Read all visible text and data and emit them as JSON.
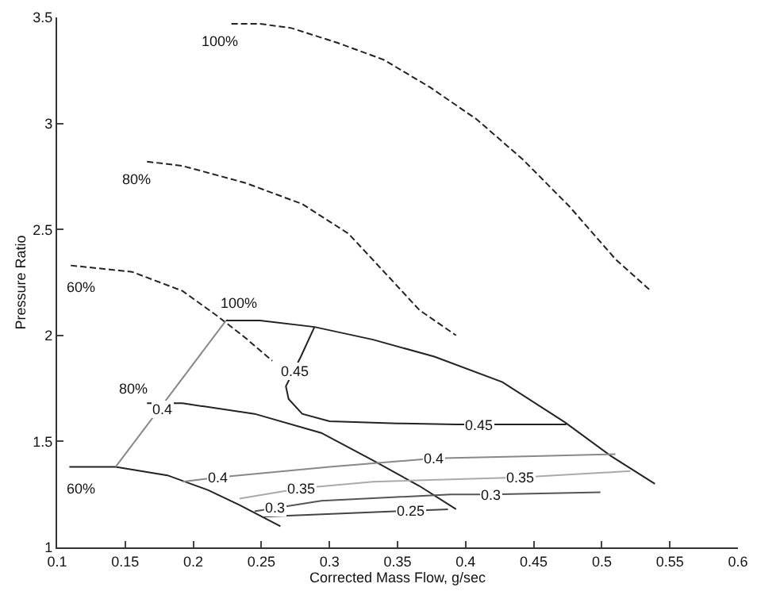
{
  "chart_data": {
    "type": "line",
    "xlabel": "Corrected Mass Flow, g/sec",
    "ylabel": "Pressure Ratio",
    "xlim": [
      0.1,
      0.6
    ],
    "xticks": [
      0.1,
      0.15,
      0.2,
      0.25,
      0.3,
      0.35,
      0.4,
      0.45,
      0.5,
      0.55,
      0.6
    ],
    "ylim": [
      1,
      3.5
    ],
    "yticks": [
      1,
      1.5,
      2,
      2.5,
      3,
      3.5
    ],
    "marker": "none",
    "series": [
      {
        "color": "#222222",
        "line_style": "dashed",
        "x": [
          0.228,
          0.249,
          0.272,
          0.306,
          0.34,
          0.374,
          0.408,
          0.442,
          0.476,
          0.51,
          0.536
        ],
        "values": [
          3.47,
          3.47,
          3.45,
          3.38,
          3.3,
          3.17,
          3.02,
          2.83,
          2.61,
          2.36,
          2.21
        ]
      },
      {
        "color": "#222222",
        "line_style": "dashed",
        "x": [
          0.166,
          0.192,
          0.238,
          0.28,
          0.314,
          0.343,
          0.366,
          0.393
        ],
        "values": [
          2.82,
          2.8,
          2.72,
          2.62,
          2.48,
          2.28,
          2.12,
          2.0
        ]
      },
      {
        "color": "#222222",
        "line_style": "dashed",
        "x": [
          0.11,
          0.155,
          0.192,
          0.218,
          0.238,
          0.258
        ],
        "values": [
          2.33,
          2.3,
          2.21,
          2.09,
          1.99,
          1.88
        ]
      },
      {
        "color": "#222222",
        "line_style": "solid",
        "x": [
          0.224,
          0.249,
          0.289,
          0.332,
          0.377,
          0.427,
          0.473,
          0.507,
          0.539
        ],
        "values": [
          2.07,
          2.07,
          2.04,
          1.98,
          1.9,
          1.78,
          1.59,
          1.43,
          1.3
        ]
      },
      {
        "color": "#222222",
        "line_style": "solid",
        "x": [
          0.166,
          0.192,
          0.245,
          0.294,
          0.332,
          0.366,
          0.393
        ],
        "values": [
          1.68,
          1.68,
          1.63,
          1.54,
          1.41,
          1.29,
          1.18
        ]
      },
      {
        "color": "#222222",
        "line_style": "solid",
        "x": [
          0.109,
          0.143,
          0.181,
          0.211,
          0.234,
          0.264
        ],
        "values": [
          1.38,
          1.38,
          1.34,
          1.27,
          1.2,
          1.1
        ]
      },
      {
        "color": "#222222",
        "line_style": "solid",
        "x": [
          0.289,
          0.279,
          0.268,
          0.27,
          0.28,
          0.3,
          0.35,
          0.393,
          0.474
        ],
        "values": [
          2.04,
          1.9,
          1.76,
          1.7,
          1.63,
          1.595,
          1.585,
          1.58,
          1.58
        ]
      },
      {
        "color": "#888888",
        "line_style": "solid",
        "x": [
          0.143,
          0.224
        ],
        "values": [
          1.38,
          2.07
        ]
      },
      {
        "color": "#888888",
        "line_style": "solid",
        "x": [
          0.192,
          0.218,
          0.3,
          0.377,
          0.45,
          0.51
        ],
        "values": [
          1.31,
          1.33,
          1.38,
          1.42,
          1.43,
          1.44
        ]
      },
      {
        "color": "#aaaaaa",
        "line_style": "solid",
        "x": [
          0.234,
          0.28,
          0.332,
          0.44,
          0.521
        ],
        "values": [
          1.23,
          1.28,
          1.31,
          1.33,
          1.36
        ]
      },
      {
        "color": "#555555",
        "line_style": "solid",
        "x": [
          0.245,
          0.294,
          0.389,
          0.419,
          0.499
        ],
        "values": [
          1.17,
          1.22,
          1.25,
          1.25,
          1.26
        ]
      },
      {
        "color": "#444444",
        "line_style": "solid",
        "x": [
          0.252,
          0.348,
          0.387
        ],
        "values": [
          1.145,
          1.17,
          1.18
        ]
      }
    ],
    "annotations": [
      {
        "text": "100%",
        "x": 0.22,
        "y": 3.39
      },
      {
        "text": "80%",
        "x": 0.158,
        "y": 2.74
      },
      {
        "text": "60%",
        "x": 0.118,
        "y": 2.23
      },
      {
        "text": "100%",
        "x": 0.234,
        "y": 2.15
      },
      {
        "text": "80%",
        "x": 0.156,
        "y": 1.75
      },
      {
        "text": "60%",
        "x": 0.118,
        "y": 1.28
      },
      {
        "text": "0.45",
        "x": 0.275,
        "y": 1.83
      },
      {
        "text": "0.45",
        "x": 0.41,
        "y": 1.58
      },
      {
        "text": "0.4",
        "x": 0.177,
        "y": 1.65
      },
      {
        "text": "0.4",
        "x": 0.218,
        "y": 1.33
      },
      {
        "text": "0.4",
        "x": 0.377,
        "y": 1.42
      },
      {
        "text": "0.35",
        "x": 0.28,
        "y": 1.28
      },
      {
        "text": "0.35",
        "x": 0.44,
        "y": 1.33
      },
      {
        "text": "0.3",
        "x": 0.26,
        "y": 1.19
      },
      {
        "text": "0.3",
        "x": 0.419,
        "y": 1.25
      },
      {
        "text": "0.25",
        "x": 0.36,
        "y": 1.17
      }
    ]
  }
}
